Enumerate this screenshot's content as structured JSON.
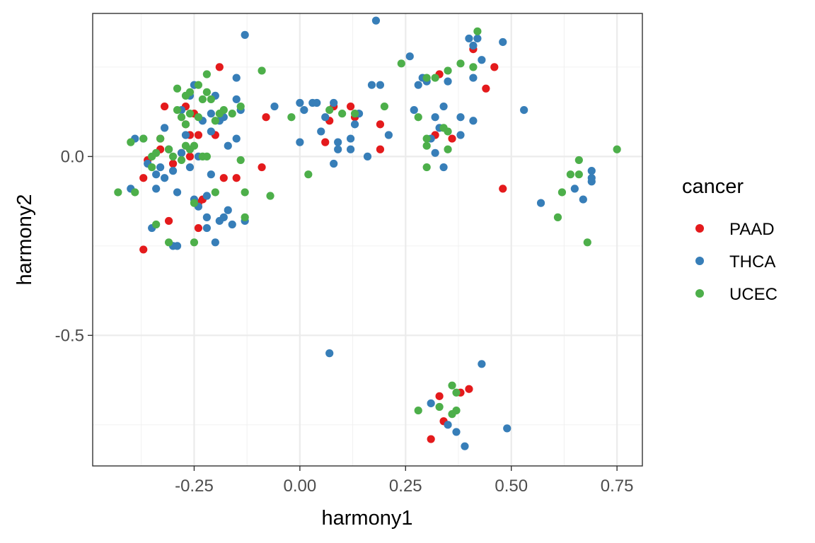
{
  "chart_data": {
    "type": "scatter",
    "xlabel": "harmony1",
    "ylabel": "harmony2",
    "xlim": [
      -0.49,
      0.81
    ],
    "ylim": [
      -0.865,
      0.4
    ],
    "x_ticks": [
      -0.25,
      0.0,
      0.25,
      0.5,
      0.75
    ],
    "x_tick_labels": [
      "-0.25",
      "0.00",
      "0.25",
      "0.50",
      "0.75"
    ],
    "y_ticks": [
      -0.5,
      0.0
    ],
    "y_tick_labels": [
      "-0.5",
      "0.0"
    ],
    "grid": true,
    "legend": {
      "title": "cancer",
      "position": "right"
    },
    "series": [
      {
        "name": "PAAD",
        "color": "#e41a1c",
        "points": [
          [
            -0.37,
            -0.26
          ],
          [
            -0.37,
            -0.06
          ],
          [
            -0.36,
            -0.01
          ],
          [
            -0.32,
            0.14
          ],
          [
            -0.31,
            -0.18
          ],
          [
            -0.33,
            0.05
          ],
          [
            -0.33,
            0.02
          ],
          [
            -0.3,
            -0.02
          ],
          [
            -0.28,
            0.01
          ],
          [
            -0.27,
            0.14
          ],
          [
            -0.27,
            0.09
          ],
          [
            -0.26,
            0.0
          ],
          [
            -0.26,
            0.06
          ],
          [
            -0.25,
            0.12
          ],
          [
            -0.24,
            0.06
          ],
          [
            -0.24,
            -0.2
          ],
          [
            -0.24,
            -0.13
          ],
          [
            -0.23,
            -0.12
          ],
          [
            -0.2,
            0.06
          ],
          [
            -0.19,
            0.25
          ],
          [
            -0.18,
            -0.06
          ],
          [
            -0.15,
            -0.06
          ],
          [
            -0.09,
            -0.03
          ],
          [
            -0.08,
            0.11
          ],
          [
            0.06,
            0.04
          ],
          [
            0.07,
            0.1
          ],
          [
            0.08,
            0.14
          ],
          [
            0.12,
            0.14
          ],
          [
            0.13,
            0.11
          ],
          [
            0.19,
            0.09
          ],
          [
            0.19,
            0.02
          ],
          [
            0.33,
            0.23
          ],
          [
            0.36,
            0.05
          ],
          [
            0.41,
            0.3
          ],
          [
            0.44,
            0.19
          ],
          [
            0.46,
            0.25
          ],
          [
            0.48,
            -0.09
          ],
          [
            0.32,
            0.06
          ],
          [
            0.31,
            -0.79
          ],
          [
            0.33,
            -0.67
          ],
          [
            0.34,
            -0.74
          ],
          [
            0.38,
            -0.66
          ],
          [
            0.4,
            -0.65
          ]
        ]
      },
      {
        "name": "THCA",
        "color": "#377eb8",
        "points": [
          [
            -0.4,
            -0.09
          ],
          [
            -0.39,
            0.05
          ],
          [
            -0.37,
            0.05
          ],
          [
            -0.36,
            -0.02
          ],
          [
            -0.35,
            -0.2
          ],
          [
            -0.34,
            -0.05
          ],
          [
            -0.34,
            -0.09
          ],
          [
            -0.33,
            -0.03
          ],
          [
            -0.32,
            0.08
          ],
          [
            -0.32,
            -0.06
          ],
          [
            -0.31,
            0.02
          ],
          [
            -0.3,
            -0.04
          ],
          [
            -0.3,
            -0.25
          ],
          [
            -0.29,
            -0.25
          ],
          [
            -0.29,
            -0.1
          ],
          [
            -0.28,
            0.01
          ],
          [
            -0.28,
            0.13
          ],
          [
            -0.27,
            0.06
          ],
          [
            -0.26,
            0.17
          ],
          [
            -0.26,
            -0.03
          ],
          [
            -0.25,
            0.2
          ],
          [
            -0.25,
            -0.12
          ],
          [
            -0.24,
            -0.14
          ],
          [
            -0.24,
            0.0
          ],
          [
            -0.23,
            0.1
          ],
          [
            -0.22,
            -0.11
          ],
          [
            -0.22,
            -0.2
          ],
          [
            -0.22,
            -0.17
          ],
          [
            -0.21,
            -0.05
          ],
          [
            -0.21,
            0.07
          ],
          [
            -0.21,
            0.12
          ],
          [
            -0.2,
            -0.24
          ],
          [
            -0.2,
            0.17
          ],
          [
            -0.19,
            -0.18
          ],
          [
            -0.19,
            0.1
          ],
          [
            -0.18,
            0.11
          ],
          [
            -0.18,
            -0.17
          ],
          [
            -0.17,
            -0.15
          ],
          [
            -0.17,
            0.03
          ],
          [
            -0.16,
            -0.19
          ],
          [
            -0.15,
            0.16
          ],
          [
            -0.15,
            0.05
          ],
          [
            -0.15,
            0.22
          ],
          [
            -0.14,
            0.13
          ],
          [
            -0.13,
            0.34
          ],
          [
            -0.13,
            -0.18
          ],
          [
            -0.06,
            0.14
          ],
          [
            0.0,
            0.15
          ],
          [
            0.0,
            0.04
          ],
          [
            0.01,
            0.13
          ],
          [
            0.03,
            0.15
          ],
          [
            0.04,
            0.15
          ],
          [
            0.05,
            0.07
          ],
          [
            0.06,
            0.11
          ],
          [
            0.07,
            -0.55
          ],
          [
            0.08,
            0.15
          ],
          [
            0.08,
            -0.02
          ],
          [
            0.09,
            0.02
          ],
          [
            0.09,
            0.04
          ],
          [
            0.12,
            0.05
          ],
          [
            0.12,
            0.02
          ],
          [
            0.13,
            0.09
          ],
          [
            0.14,
            0.12
          ],
          [
            0.16,
            0.0
          ],
          [
            0.17,
            0.2
          ],
          [
            0.18,
            0.38
          ],
          [
            0.19,
            0.2
          ],
          [
            0.21,
            0.06
          ],
          [
            0.26,
            0.28
          ],
          [
            0.27,
            0.13
          ],
          [
            0.28,
            0.2
          ],
          [
            0.29,
            0.22
          ],
          [
            0.3,
            0.21
          ],
          [
            0.31,
            0.05
          ],
          [
            0.32,
            0.11
          ],
          [
            0.32,
            0.01
          ],
          [
            0.33,
            0.08
          ],
          [
            0.34,
            0.14
          ],
          [
            0.34,
            -0.03
          ],
          [
            0.35,
            0.21
          ],
          [
            0.38,
            0.06
          ],
          [
            0.38,
            0.11
          ],
          [
            0.4,
            0.33
          ],
          [
            0.41,
            0.31
          ],
          [
            0.41,
            0.22
          ],
          [
            0.42,
            0.33
          ],
          [
            0.43,
            0.27
          ],
          [
            0.41,
            0.1
          ],
          [
            0.48,
            0.32
          ],
          [
            0.53,
            0.13
          ],
          [
            0.57,
            -0.13
          ],
          [
            0.65,
            -0.09
          ],
          [
            0.67,
            -0.12
          ],
          [
            0.69,
            -0.04
          ],
          [
            0.69,
            -0.07
          ],
          [
            0.69,
            -0.06
          ],
          [
            0.31,
            -0.69
          ],
          [
            0.35,
            -0.75
          ],
          [
            0.37,
            -0.77
          ],
          [
            0.39,
            -0.81
          ],
          [
            0.43,
            -0.58
          ],
          [
            0.49,
            -0.76
          ]
        ]
      },
      {
        "name": "UCEC",
        "color": "#4daf4a",
        "points": [
          [
            -0.43,
            -0.1
          ],
          [
            -0.4,
            0.04
          ],
          [
            -0.39,
            -0.1
          ],
          [
            -0.37,
            0.05
          ],
          [
            -0.35,
            -0.03
          ],
          [
            -0.35,
            0.0
          ],
          [
            -0.34,
            0.01
          ],
          [
            -0.34,
            -0.19
          ],
          [
            -0.33,
            0.05
          ],
          [
            -0.31,
            -0.24
          ],
          [
            -0.31,
            0.02
          ],
          [
            -0.3,
            0.0
          ],
          [
            -0.29,
            0.13
          ],
          [
            -0.29,
            0.19
          ],
          [
            -0.28,
            0.11
          ],
          [
            -0.28,
            -0.01
          ],
          [
            -0.27,
            0.17
          ],
          [
            -0.27,
            0.09
          ],
          [
            -0.27,
            0.03
          ],
          [
            -0.26,
            0.18
          ],
          [
            -0.26,
            0.12
          ],
          [
            -0.26,
            0.02
          ],
          [
            -0.25,
            -0.24
          ],
          [
            -0.25,
            -0.13
          ],
          [
            -0.25,
            0.03
          ],
          [
            -0.24,
            0.2
          ],
          [
            -0.24,
            0.11
          ],
          [
            -0.23,
            0.16
          ],
          [
            -0.23,
            0.0
          ],
          [
            -0.22,
            0.18
          ],
          [
            -0.22,
            0.0
          ],
          [
            -0.22,
            0.23
          ],
          [
            -0.21,
            0.16
          ],
          [
            -0.2,
            0.1
          ],
          [
            -0.2,
            -0.1
          ],
          [
            -0.19,
            0.12
          ],
          [
            -0.18,
            0.13
          ],
          [
            -0.16,
            0.12
          ],
          [
            -0.14,
            0.14
          ],
          [
            -0.14,
            -0.01
          ],
          [
            -0.13,
            -0.1
          ],
          [
            -0.13,
            -0.17
          ],
          [
            -0.09,
            0.24
          ],
          [
            -0.07,
            -0.11
          ],
          [
            -0.02,
            0.11
          ],
          [
            0.02,
            -0.05
          ],
          [
            0.07,
            0.13
          ],
          [
            0.1,
            0.12
          ],
          [
            0.13,
            0.12
          ],
          [
            0.2,
            0.14
          ],
          [
            0.24,
            0.26
          ],
          [
            0.28,
            0.11
          ],
          [
            0.3,
            0.03
          ],
          [
            0.3,
            0.22
          ],
          [
            0.3,
            0.05
          ],
          [
            0.32,
            0.22
          ],
          [
            0.34,
            0.08
          ],
          [
            0.35,
            0.07
          ],
          [
            0.35,
            0.24
          ],
          [
            0.38,
            0.26
          ],
          [
            0.42,
            0.35
          ],
          [
            0.41,
            0.25
          ],
          [
            0.35,
            0.02
          ],
          [
            0.3,
            -0.03
          ],
          [
            0.61,
            -0.17
          ],
          [
            0.62,
            -0.1
          ],
          [
            0.64,
            -0.05
          ],
          [
            0.66,
            -0.05
          ],
          [
            0.66,
            -0.01
          ],
          [
            0.68,
            -0.24
          ],
          [
            0.75,
            0.02
          ],
          [
            0.28,
            -0.71
          ],
          [
            0.33,
            -0.7
          ],
          [
            0.36,
            -0.72
          ],
          [
            0.37,
            -0.71
          ],
          [
            0.36,
            -0.64
          ],
          [
            0.37,
            -0.66
          ]
        ]
      }
    ]
  }
}
